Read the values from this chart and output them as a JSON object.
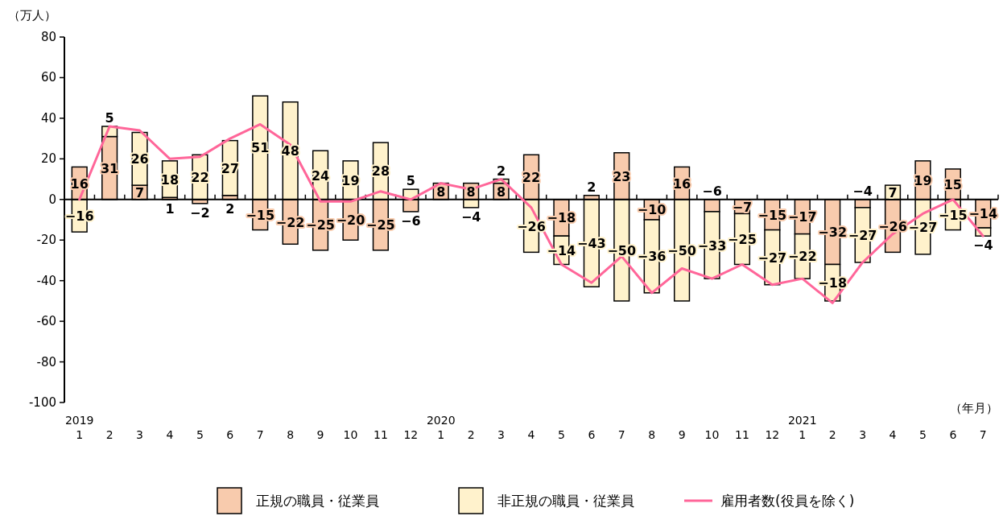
{
  "chart_data": {
    "type": "bar",
    "stacked": true,
    "ylabel": "（万人）",
    "xlabel": "（年月）",
    "categories": [
      "2019\n1",
      "2",
      "3",
      "4",
      "5",
      "6",
      "7",
      "8",
      "9",
      "10",
      "11",
      "12",
      "2020\n1",
      "2",
      "3",
      "4",
      "5",
      "6",
      "7",
      "8",
      "9",
      "10",
      "11",
      "12",
      "2021\n1",
      "2",
      "3",
      "4",
      "5",
      "6",
      "7"
    ],
    "series": [
      {
        "name": "正規の職員・従業員",
        "color": "#f8cbad",
        "values": [
          16,
          31,
          7,
          1,
          -2,
          2,
          -15,
          -22,
          -25,
          -20,
          -25,
          -6,
          8,
          8,
          8,
          22,
          -18,
          2,
          23,
          -10,
          16,
          -6,
          -7,
          -15,
          -17,
          -32,
          -4,
          -26,
          19,
          15,
          -14
        ],
        "value_labels": [
          "16",
          "31",
          "7",
          "1",
          "−2",
          "2",
          "−15",
          "−22",
          "−25",
          "−20",
          "−25",
          "−6",
          "8",
          "8",
          "8",
          "22",
          "−18",
          "2",
          "23",
          "−10",
          "16",
          "−6",
          "−7",
          "−15",
          "−17",
          "−32",
          "−4",
          "−26",
          "19",
          "15",
          "−14"
        ]
      },
      {
        "name": "非正規の職員・従業員",
        "color": "#fff2cc",
        "values": [
          -16,
          5,
          26,
          18,
          22,
          27,
          51,
          48,
          24,
          19,
          28,
          5,
          null,
          -4,
          2,
          -26,
          -14,
          -43,
          -50,
          -36,
          -50,
          -33,
          -25,
          -27,
          -22,
          -18,
          -27,
          7,
          -27,
          -15,
          -4
        ],
        "value_labels": [
          "−16",
          "5",
          "26",
          "18",
          "22",
          "27",
          "51",
          "48",
          "24",
          "19",
          "28",
          "5",
          null,
          "−4",
          "2",
          "−26",
          "−14",
          "−43",
          "−50",
          "−36",
          "−50",
          "−33",
          "−25",
          "−27",
          "−22",
          "−18",
          "−27",
          "7",
          "−27",
          "−15",
          "−4"
        ]
      },
      {
        "name": "雇用者数(役員を除く)",
        "type": "line",
        "color": "#ff6699",
        "values": [
          0,
          36,
          34,
          20,
          21,
          30,
          37,
          27,
          -1,
          -1,
          4,
          0,
          8,
          5,
          10,
          -4,
          -32,
          -41,
          -28,
          -46,
          -34,
          -39,
          -32,
          -42,
          -39,
          -51,
          -31,
          -17,
          -7,
          0,
          -18
        ]
      }
    ],
    "ylim": [
      -100,
      80
    ],
    "yticks": [
      -100,
      -80,
      -60,
      -40,
      -20,
      0,
      20,
      40,
      60,
      80
    ],
    "legend": "bottom"
  }
}
